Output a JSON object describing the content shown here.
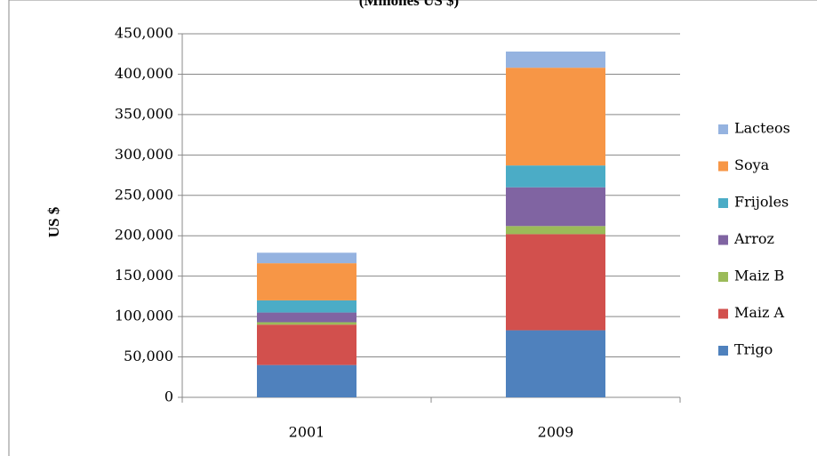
{
  "chart_data": {
    "type": "stacked_bar",
    "title": "(Millones US $)",
    "y_label": "US $",
    "categories": [
      "2001",
      "2009"
    ],
    "series": [
      {
        "name": "Trigo",
        "color": "#4f81bd",
        "values": [
          40000,
          83000
        ]
      },
      {
        "name": "Maiz A",
        "color": "#d2504d",
        "values": [
          50000,
          119000
        ]
      },
      {
        "name": "Maiz B",
        "color": "#9bbb59",
        "values": [
          3000,
          10000
        ]
      },
      {
        "name": "Arroz",
        "color": "#8064a2",
        "values": [
          12000,
          48000
        ]
      },
      {
        "name": "Frijoles",
        "color": "#4bacc6",
        "values": [
          15000,
          27000
        ]
      },
      {
        "name": "Soya",
        "color": "#f79646",
        "values": [
          46000,
          121000
        ]
      },
      {
        "name": "Lacteos",
        "color": "#95b3e0",
        "values": [
          13000,
          20000
        ]
      }
    ],
    "ylim": [
      0,
      450000
    ],
    "yticks": [
      0,
      {
        "value": 50000,
        "label": "50,000"
      },
      {
        "value": 100000,
        "label": "100,000"
      },
      {
        "value": 150000,
        "label": "150,000"
      },
      {
        "value": 200000,
        "label": "200,000"
      },
      {
        "value": 250000,
        "label": "250,000"
      },
      {
        "value": 300000,
        "label": "300,000"
      },
      {
        "value": 350000,
        "label": "350,000"
      },
      {
        "value": 400000,
        "label": "400,000"
      },
      {
        "value": 450000,
        "label": "450,000"
      }
    ],
    "legend": "right"
  }
}
